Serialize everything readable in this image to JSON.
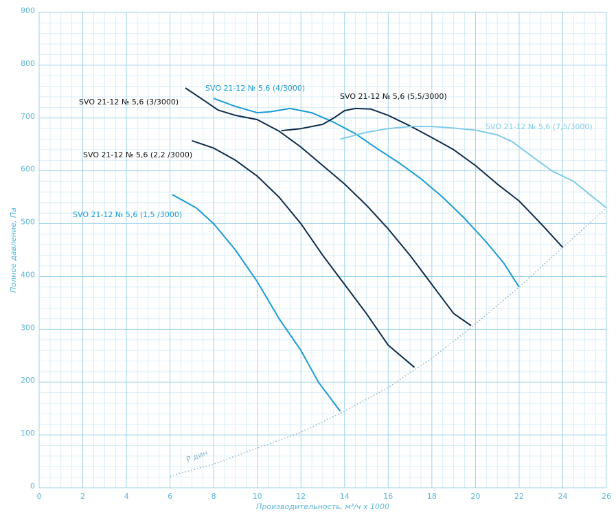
{
  "chart_data": {
    "type": "line",
    "xlabel": "Производительность, м³/ч x 1000",
    "ylabel": "Полное давление, Па",
    "xlim": [
      0,
      26
    ],
    "ylim": [
      0,
      900
    ],
    "xticks": [
      0,
      2,
      4,
      6,
      8,
      10,
      12,
      14,
      16,
      18,
      20,
      22,
      24,
      26
    ],
    "yticks": [
      0,
      100,
      200,
      300,
      400,
      500,
      600,
      700,
      800,
      900
    ],
    "grid": true,
    "series": [
      {
        "name": "SVO 21-12 № 5,6 (1,5 /3000)",
        "color": "#1a9ad6",
        "x": [
          6.1,
          7.2,
          8,
          9,
          10,
          11,
          12,
          12.8,
          13.8
        ],
        "values": [
          555,
          530,
          500,
          450,
          390,
          320,
          260,
          200,
          145
        ]
      },
      {
        "name": "SVO 21-12 № 5,6 (2,2 /3000)",
        "color": "#0d2a4a",
        "x": [
          7,
          8,
          9,
          10,
          11,
          12,
          13,
          14,
          15,
          16,
          17.2
        ],
        "values": [
          657,
          643,
          620,
          590,
          550,
          500,
          440,
          385,
          330,
          270,
          228
        ]
      },
      {
        "name": "SVO 21-12 № 5,6 (3/3000)",
        "color": "#0d2a4a",
        "x": [
          6.7,
          7.5,
          8.2,
          9,
          10,
          11,
          12,
          13,
          14,
          15,
          16,
          17,
          18,
          19,
          19.8
        ],
        "values": [
          757,
          735,
          715,
          705,
          697,
          675,
          645,
          610,
          575,
          535,
          490,
          440,
          385,
          330,
          307
        ]
      },
      {
        "name": "SVO 21-12 № 5,6 (4/3000)",
        "color": "#1a9ad6",
        "x": [
          8,
          9,
          10,
          10.6,
          11.5,
          12.5,
          13.5,
          14.5,
          15.5,
          16.5,
          17.5,
          18.5,
          19.5,
          20.5,
          21.3,
          22
        ],
        "values": [
          737,
          722,
          710,
          712,
          718,
          710,
          692,
          670,
          642,
          615,
          585,
          550,
          510,
          465,
          425,
          380
        ]
      },
      {
        "name": "SVO 21-12 № 5,6 (5,5/3000)",
        "color": "#0d2a4a",
        "x": [
          11.1,
          12,
          13,
          13.5,
          14,
          14.5,
          15.2,
          16,
          17,
          18,
          19,
          20,
          21,
          22,
          23,
          24
        ],
        "values": [
          676,
          680,
          688,
          700,
          714,
          718,
          717,
          705,
          685,
          663,
          640,
          610,
          575,
          543,
          500,
          455
        ]
      },
      {
        "name": "SVO 21-12 № 5,6 (7,5/3000)",
        "color": "#7fcbe8",
        "x": [
          13.8,
          15,
          16,
          17,
          18,
          19,
          20,
          21,
          21.7,
          22.5,
          23.5,
          24.5,
          25.3,
          26
        ],
        "values": [
          660,
          673,
          680,
          684,
          684,
          681,
          677,
          668,
          655,
          630,
          600,
          580,
          553,
          530
        ]
      },
      {
        "name": "Р дин",
        "color": "#8fb4c8",
        "dashed": true,
        "x": [
          6,
          8,
          10,
          12,
          14,
          16,
          18,
          20,
          22,
          24,
          26
        ],
        "values": [
          22,
          45,
          75,
          105,
          145,
          190,
          245,
          310,
          380,
          455,
          530
        ]
      }
    ]
  }
}
